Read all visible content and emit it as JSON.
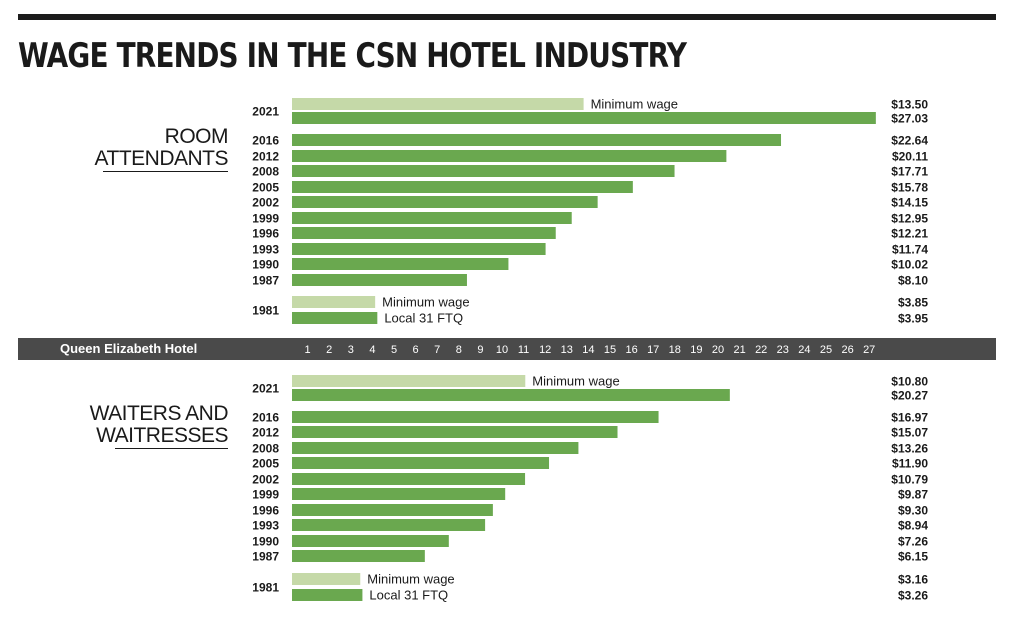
{
  "title": "WAGE TRENDS IN THE CSN HOTEL INDUSTRY",
  "colors": {
    "bar": "#6aa84f",
    "min_wage": "#c5d9a8",
    "band": "#4a4a4a",
    "text": "#1a1a1a"
  },
  "axis": {
    "label": "Queen Elizabeth Hotel",
    "ticks": [
      1,
      2,
      3,
      4,
      5,
      6,
      7,
      8,
      9,
      10,
      11,
      12,
      13,
      14,
      15,
      16,
      17,
      18,
      19,
      20,
      21,
      22,
      23,
      24,
      25,
      26,
      27
    ]
  },
  "sections": [
    {
      "title_lines": [
        "ROOM",
        "ATTENDANTS"
      ]
    },
    {
      "title_lines": [
        "WAITERS AND",
        "WAITRESSES"
      ]
    }
  ],
  "chart_data": [
    {
      "type": "bar",
      "title": "ROOM ATTENDANTS",
      "unit": "$ per hour",
      "xlim": [
        0,
        27
      ],
      "bars": [
        {
          "year": "2021",
          "label": "Minimum wage",
          "value": 13.5,
          "value_label": "$13.50",
          "kind": "min"
        },
        {
          "year": "",
          "label": "",
          "value": 27.03,
          "value_label": "$27.03",
          "kind": "wage"
        },
        {
          "year": "2016",
          "label": "",
          "value": 22.64,
          "value_label": "$22.64",
          "kind": "wage"
        },
        {
          "year": "2012",
          "label": "",
          "value": 20.11,
          "value_label": "$20.11",
          "kind": "wage"
        },
        {
          "year": "2008",
          "label": "",
          "value": 17.71,
          "value_label": "$17.71",
          "kind": "wage"
        },
        {
          "year": "2005",
          "label": "",
          "value": 15.78,
          "value_label": "$15.78",
          "kind": "wage"
        },
        {
          "year": "2002",
          "label": "",
          "value": 14.15,
          "value_label": "$14.15",
          "kind": "wage"
        },
        {
          "year": "1999",
          "label": "",
          "value": 12.95,
          "value_label": "$12.95",
          "kind": "wage"
        },
        {
          "year": "1996",
          "label": "",
          "value": 12.21,
          "value_label": "$12.21",
          "kind": "wage"
        },
        {
          "year": "1993",
          "label": "",
          "value": 11.74,
          "value_label": "$11.74",
          "kind": "wage"
        },
        {
          "year": "1990",
          "label": "",
          "value": 10.02,
          "value_label": "$10.02",
          "kind": "wage"
        },
        {
          "year": "1987",
          "label": "",
          "value": 8.1,
          "value_label": "$8.10",
          "kind": "wage"
        },
        {
          "year": "1981",
          "label": "Minimum wage",
          "value": 3.85,
          "value_label": "$3.85",
          "kind": "min"
        },
        {
          "year": "",
          "label": "Local 31 FTQ",
          "value": 3.95,
          "value_label": "$3.95",
          "kind": "wage"
        }
      ]
    },
    {
      "type": "bar",
      "title": "WAITERS AND WAITRESSES",
      "unit": "$ per hour",
      "xlim": [
        0,
        27
      ],
      "bars": [
        {
          "year": "2021",
          "label": "Minimum wage",
          "value": 10.8,
          "value_label": "$10.80",
          "kind": "min"
        },
        {
          "year": "",
          "label": "",
          "value": 20.27,
          "value_label": "$20.27",
          "kind": "wage"
        },
        {
          "year": "2016",
          "label": "",
          "value": 16.97,
          "value_label": "$16.97",
          "kind": "wage"
        },
        {
          "year": "2012",
          "label": "",
          "value": 15.07,
          "value_label": "$15.07",
          "kind": "wage"
        },
        {
          "year": "2008",
          "label": "",
          "value": 13.26,
          "value_label": "$13.26",
          "kind": "wage"
        },
        {
          "year": "2005",
          "label": "",
          "value": 11.9,
          "value_label": "$11.90",
          "kind": "wage"
        },
        {
          "year": "2002",
          "label": "",
          "value": 10.79,
          "value_label": "$10.79",
          "kind": "wage"
        },
        {
          "year": "1999",
          "label": "",
          "value": 9.87,
          "value_label": "$9.87",
          "kind": "wage"
        },
        {
          "year": "1996",
          "label": "",
          "value": 9.3,
          "value_label": "$9.30",
          "kind": "wage"
        },
        {
          "year": "1993",
          "label": "",
          "value": 8.94,
          "value_label": "$8.94",
          "kind": "wage"
        },
        {
          "year": "1990",
          "label": "",
          "value": 7.26,
          "value_label": "$7.26",
          "kind": "wage"
        },
        {
          "year": "1987",
          "label": "",
          "value": 6.15,
          "value_label": "$6.15",
          "kind": "wage"
        },
        {
          "year": "1981",
          "label": "Minimum wage",
          "value": 3.16,
          "value_label": "$3.16",
          "kind": "min"
        },
        {
          "year": "",
          "label": "Local 31 FTQ",
          "value": 3.26,
          "value_label": "$3.26",
          "kind": "wage"
        }
      ]
    }
  ]
}
